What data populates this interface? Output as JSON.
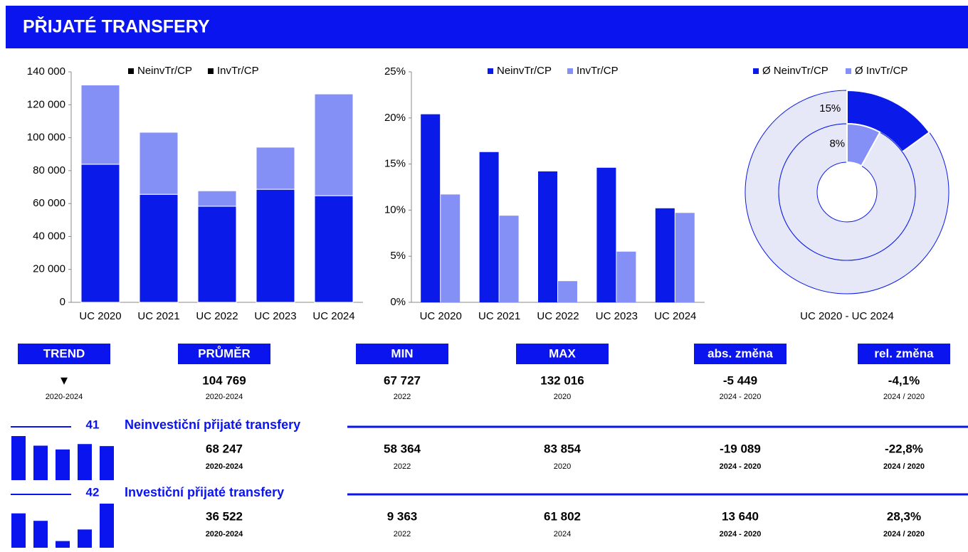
{
  "header": {
    "title": "PŘIJATÉ TRANSFERY"
  },
  "chart_data": [
    {
      "type": "stacked_bar",
      "categories": [
        "UC 2020",
        "UC 2021",
        "UC 2022",
        "UC 2023",
        "UC 2024"
      ],
      "series": [
        {
          "name": "NeinvTr/CP",
          "color": "#0a1ae8",
          "values": [
            83854,
            65600,
            58364,
            68652,
            64765
          ]
        },
        {
          "name": "InvTr/CP",
          "color": "#8590f7",
          "values": [
            48162,
            37700,
            9363,
            25583,
            61802
          ]
        }
      ],
      "legend_marker_color": "#000000",
      "ylim": [
        0,
        140000
      ],
      "yticks": [
        0,
        {
          "value": 20000,
          "label": "20 000"
        },
        {
          "value": 40000,
          "label": "40 000"
        },
        {
          "value": 60000,
          "label": "60 000"
        },
        {
          "value": 80000,
          "label": "80 000"
        },
        {
          "value": 100000,
          "label": "100 000"
        },
        {
          "value": 120000,
          "label": "120 000"
        },
        {
          "value": 140000,
          "label": "140 000"
        }
      ]
    },
    {
      "type": "bar",
      "categories": [
        "UC 2020",
        "UC 2021",
        "UC 2022",
        "UC 2023",
        "UC 2024"
      ],
      "series": [
        {
          "name": "NeinvTr/CP",
          "color": "#0a1ae8",
          "values": [
            20.4,
            16.3,
            14.2,
            14.6,
            10.2
          ]
        },
        {
          "name": "InvTr/CP",
          "color": "#8590f7",
          "values": [
            11.7,
            9.4,
            2.3,
            5.5,
            9.7
          ]
        }
      ],
      "ylim": [
        0,
        25
      ],
      "yticks": [
        {
          "value": 0,
          "label": "0%"
        },
        {
          "value": 5,
          "label": "5%"
        },
        {
          "value": 10,
          "label": "10%"
        },
        {
          "value": 15,
          "label": "15%"
        },
        {
          "value": 20,
          "label": "20%"
        },
        {
          "value": 25,
          "label": "25%"
        }
      ]
    },
    {
      "type": "donut",
      "series": [
        {
          "name": "Ø NeinvTr/CP",
          "color": "#0a1ae8",
          "values": [
            15
          ],
          "value_labels": [
            "15%"
          ]
        },
        {
          "name": "Ø InvTr/CP",
          "color": "#8590f7",
          "values": [
            8
          ],
          "value_labels": [
            "8%"
          ]
        }
      ],
      "remainder_color": "#e6e8f8",
      "xlabel": "UC 2020 - UC 2024"
    }
  ],
  "summary": {
    "headers": [
      "TREND",
      "PRŮMĚR",
      "MIN",
      "MAX",
      "abs. změna",
      "rel. změna"
    ],
    "values": [
      "▼",
      "104 769",
      "67 727",
      "132 016",
      "-5 449",
      "-4,1%"
    ],
    "periods": [
      "2020-2024",
      "2020-2024",
      "2022",
      "2020",
      "2024 - 2020",
      "2024 / 2020"
    ]
  },
  "rows": [
    {
      "code": "41",
      "name": "Neinvestiční přijaté transfery",
      "values": [
        "68 247",
        "58 364",
        "83 854",
        "-19 089",
        "-22,8%"
      ],
      "periods": [
        "2020-2024",
        "2022",
        "2020",
        "2024 - 2020",
        "2024 / 2020"
      ]
    },
    {
      "code": "42",
      "name": "Investiční přijaté transfery",
      "values": [
        "36 522",
        "9 363",
        "61 802",
        "13 640",
        "28,3%"
      ],
      "periods": [
        "2020-2024",
        "2022",
        "2024",
        "2024 - 2020",
        "2024 / 2020"
      ]
    }
  ]
}
